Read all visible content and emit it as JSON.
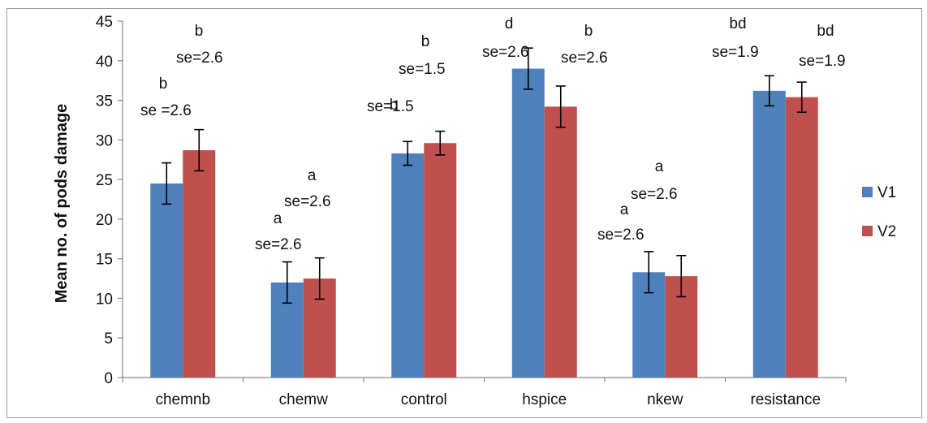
{
  "chart_data": {
    "type": "bar",
    "title": "",
    "xlabel": "",
    "ylabel": "Mean no. of pods damage",
    "ylim": [
      0,
      45
    ],
    "yticks": [
      0,
      5,
      10,
      15,
      20,
      25,
      30,
      35,
      40,
      45
    ],
    "grid": false,
    "legend_position": "right",
    "categories": [
      "chemnb",
      "chemw",
      "control",
      "hspice",
      "nkew",
      "resistance"
    ],
    "series": [
      {
        "name": "V1",
        "color": "#4f81bd",
        "values": [
          24.5,
          12.0,
          28.3,
          39.0,
          13.3,
          36.2
        ],
        "error": [
          2.6,
          2.6,
          1.5,
          2.6,
          2.6,
          1.9
        ],
        "letters": [
          "b",
          "a",
          "b",
          "d",
          "a",
          "bd"
        ],
        "se_labels": [
          "se =2.6",
          "se=2.6",
          "se=1.5",
          "se=2.6",
          "se=2.6",
          "se=1.9"
        ]
      },
      {
        "name": "V2",
        "color": "#c0504d",
        "values": [
          28.7,
          12.5,
          29.6,
          34.2,
          12.8,
          35.4
        ],
        "error": [
          2.6,
          2.6,
          1.5,
          2.6,
          2.6,
          1.9
        ],
        "letters": [
          "b",
          "a",
          "b",
          "b",
          "a",
          "bd"
        ],
        "se_labels": [
          "se=2.6",
          "se=2.6",
          "se=1.5",
          "se=2.6",
          "se=2.6",
          "se=1.9"
        ]
      }
    ]
  }
}
